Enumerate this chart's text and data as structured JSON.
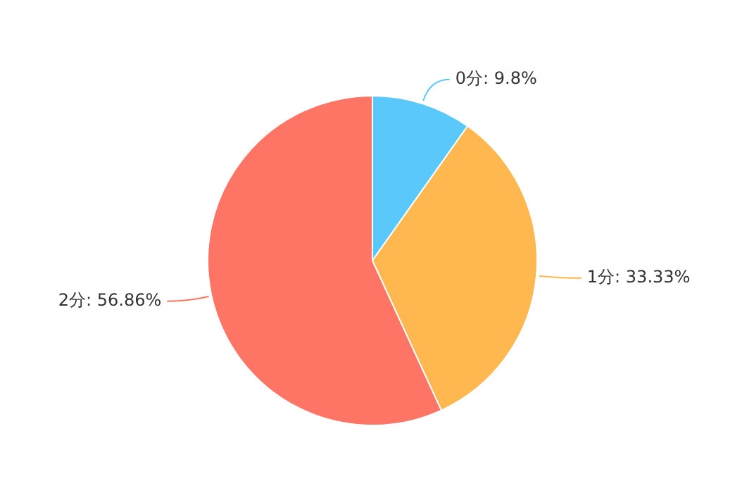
{
  "chart_data": {
    "type": "pie",
    "categories": [
      "0分",
      "1分",
      "2分"
    ],
    "values": [
      9.8,
      33.33,
      56.86
    ],
    "colors": [
      "#5bc8fb",
      "#ffb74f",
      "#ff7565"
    ],
    "value_labels": [
      "9.8%",
      "33.33%",
      "56.86%"
    ]
  }
}
